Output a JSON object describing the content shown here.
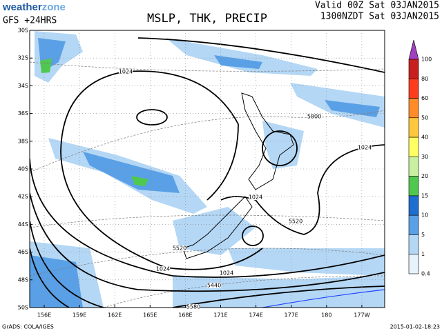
{
  "header": {
    "logo": {
      "part1": "weather",
      "part2": "zone"
    },
    "model": "GFS +24HRS",
    "title": "MSLP, THK, PRECIP",
    "valid": "Valid 00Z Sat 03JAN2015",
    "local": "1300NZDT Sat 03JAN2015"
  },
  "map": {
    "lat_labels": [
      "30S",
      "32S",
      "34S",
      "36S",
      "38S",
      "40S",
      "42S",
      "44S",
      "46S",
      "48S",
      "50S"
    ],
    "lon_labels": [
      "156E",
      "159E",
      "162E",
      "165E",
      "168E",
      "171E",
      "174E",
      "177E",
      "180",
      "177W"
    ],
    "contour_labels": [
      "1024",
      "1024",
      "1024",
      "1024",
      "1024",
      "5800",
      "5520",
      "5520",
      "5440",
      "5580"
    ]
  },
  "legend": {
    "levels": [
      100,
      80,
      60,
      50,
      40,
      30,
      20,
      15,
      10,
      5,
      1,
      0.4
    ],
    "colors": [
      "#a040c0",
      "#c81e1e",
      "#ff3c1e",
      "#ff8c28",
      "#ffc83c",
      "#ffff64",
      "#c8f0a0",
      "#50c850",
      "#1e6ed2",
      "#5aa0e6",
      "#b4d7f5",
      "#e6f2fc"
    ]
  },
  "footer": {
    "left": "GrADS: COLA/IGES",
    "right": "2015-01-02-18:23"
  }
}
